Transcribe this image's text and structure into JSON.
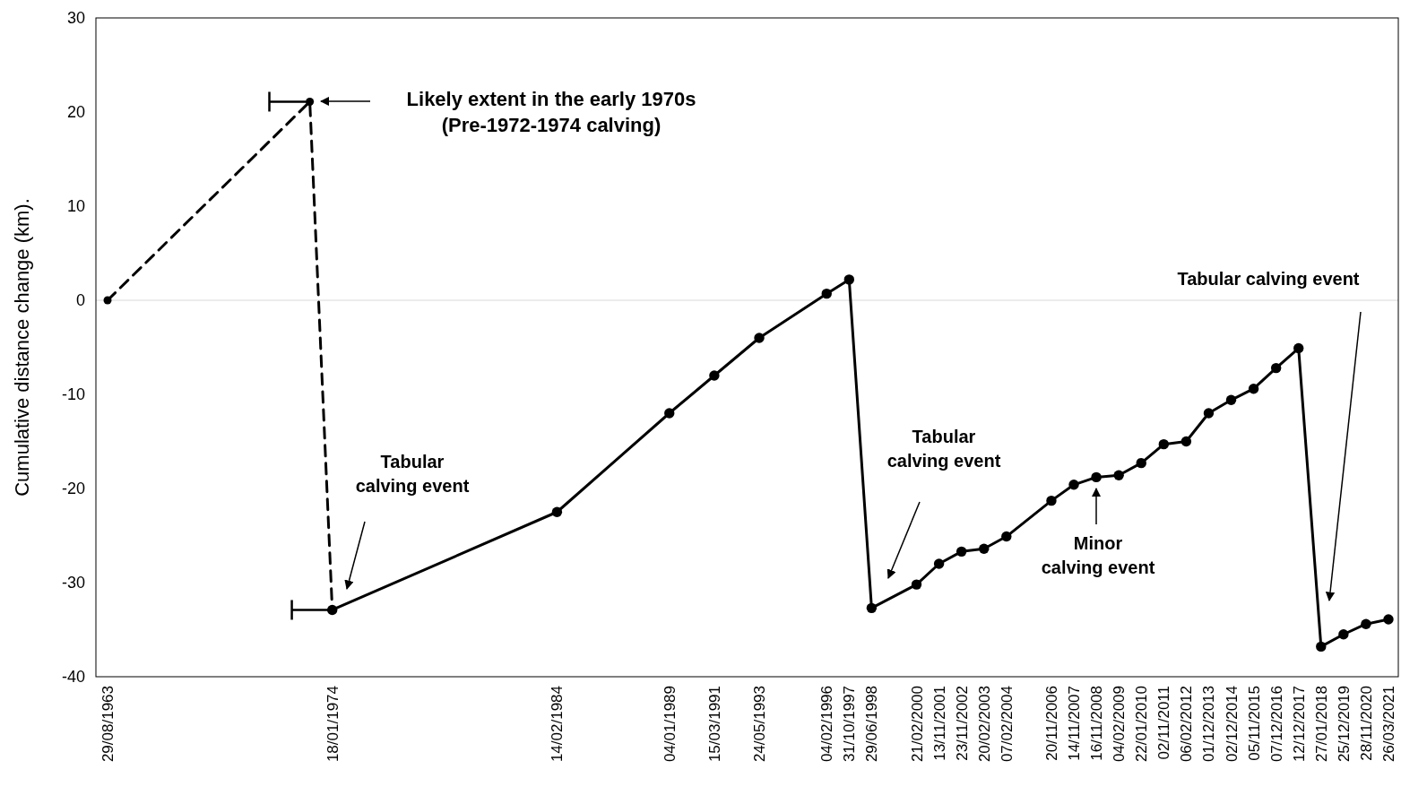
{
  "chart_data": {
    "type": "line",
    "ylabel": "Cumulative distance change (km).",
    "categories": [
      "29/08/1963",
      null,
      null,
      null,
      null,
      null,
      null,
      null,
      null,
      null,
      "18/01/1974",
      null,
      null,
      null,
      null,
      null,
      null,
      null,
      null,
      null,
      "14/02/1984",
      null,
      null,
      null,
      null,
      "04/01/1989",
      null,
      "15/03/1991",
      null,
      "24/05/1993",
      null,
      null,
      "04/02/1996",
      "31/10/1997",
      "29/06/1998",
      null,
      "21/02/2000",
      "13/11/2001",
      "23/11/2002",
      "20/02/2003",
      "07/02/2004",
      null,
      "20/11/2006",
      "14/11/2007",
      "16/11/2008",
      "04/02/2009",
      "22/01/2010",
      "02/11/2011",
      "06/02/2012",
      "01/12/2013",
      "02/12/2014",
      "05/11/2015",
      "07/12/2016",
      "12/12/2017",
      "27/01/2018",
      "25/12/2019",
      "28/11/2020",
      "26/03/2021"
    ],
    "series": [
      {
        "color": "#000000",
        "line_style": "dashed",
        "marker": "circle",
        "values": [
          0,
          null,
          null,
          null,
          null,
          null,
          null,
          null,
          null,
          21.1,
          -32.9,
          null,
          null,
          null,
          null,
          null,
          null,
          null,
          null,
          null,
          null,
          null,
          null,
          null,
          null,
          null,
          null,
          null,
          null,
          null,
          null,
          null,
          null,
          null,
          null,
          null,
          null,
          null,
          null,
          null,
          null,
          null,
          null,
          null,
          null,
          null,
          null,
          null,
          null,
          null,
          null,
          null,
          null,
          null,
          null,
          null,
          null,
          null
        ]
      },
      {
        "color": "#000000",
        "line_style": "solid",
        "marker": "circle",
        "values": [
          null,
          null,
          null,
          null,
          null,
          null,
          null,
          null,
          null,
          null,
          -32.9,
          null,
          null,
          null,
          null,
          null,
          null,
          null,
          null,
          null,
          -22.5,
          null,
          null,
          null,
          null,
          -12.0,
          null,
          -8.0,
          null,
          -4.0,
          null,
          null,
          0.7,
          2.2,
          -32.7,
          null,
          -30.2,
          -28.0,
          -26.7,
          -26.4,
          -25.1,
          null,
          -21.3,
          -19.6,
          -18.8,
          -18.6,
          -17.3,
          -15.3,
          -15.0,
          -12.0,
          -10.6,
          -9.4,
          -7.2,
          -5.1,
          -36.8,
          -35.5,
          -34.4,
          -33.9
        ]
      }
    ],
    "ylim": [
      -40,
      30
    ],
    "yticks": [
      -40,
      -30,
      -20,
      -10,
      0,
      10,
      20,
      30
    ],
    "grid": false,
    "ref_lines": [
      {
        "axis": "y",
        "value": 0,
        "color": "#d9d9d9"
      }
    ],
    "annotations": [
      "Likely extent in the early 1970s\n(Pre-1972-1974 calving)",
      "Tabular\ncalving event",
      "Tabular\ncalving event",
      "Minor\ncalving event",
      "Tabular calving event"
    ]
  }
}
